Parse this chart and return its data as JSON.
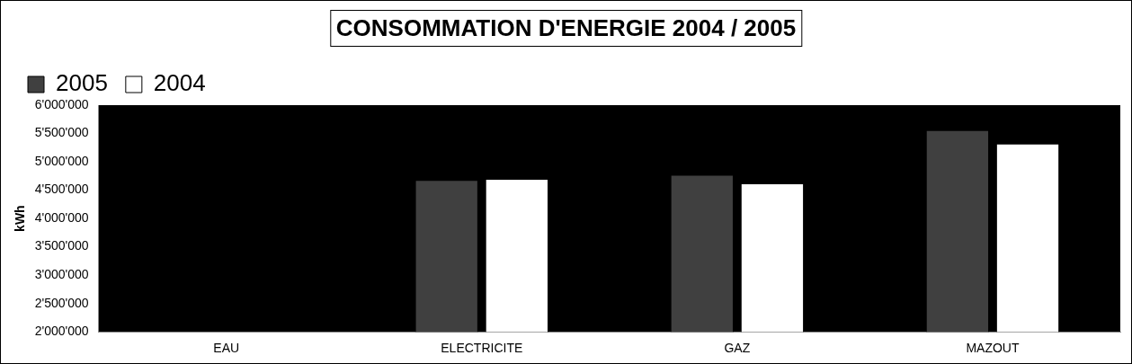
{
  "chart_data": {
    "type": "bar",
    "title": "CONSOMMATION D'ENERGIE 2004 / 2005",
    "ylabel": "kWh",
    "categories": [
      "EAU",
      "ELECTRICITE",
      "GAZ",
      "MAZOUT"
    ],
    "series": [
      {
        "name": "2005",
        "color": "#404040",
        "values": [
          null,
          4680000,
          4770000,
          5560000
        ]
      },
      {
        "name": "2004",
        "color": "#ffffff",
        "values": [
          null,
          4700000,
          4620000,
          5320000
        ]
      }
    ],
    "ylim": [
      2000000,
      6000000
    ],
    "yticks": [
      {
        "value": 2000000,
        "label": "2'000'000"
      },
      {
        "value": 2500000,
        "label": "2'500'000"
      },
      {
        "value": 3000000,
        "label": "3'000'000"
      },
      {
        "value": 3500000,
        "label": "3'500'000"
      },
      {
        "value": 4000000,
        "label": "4'000'000"
      },
      {
        "value": 4500000,
        "label": "4'500'000"
      },
      {
        "value": 5000000,
        "label": "5'000'000"
      },
      {
        "value": 5500000,
        "label": "5'500'000"
      },
      {
        "value": 6000000,
        "label": "6'000'000"
      }
    ],
    "legend": "top left",
    "grid": false
  }
}
